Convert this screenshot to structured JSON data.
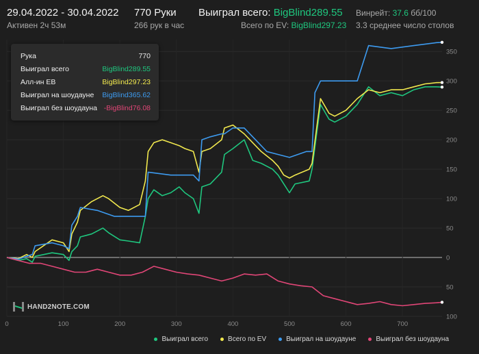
{
  "header": {
    "date_range": "29.04.2022 - 30.04.2022",
    "active": "Активен 2ч 53м",
    "hands": "770 Руки",
    "hands_per_hour": "266 рук в час",
    "won_label": "Выиграл всего:",
    "won_value": "BigBlind289.55",
    "ev_label": "Всего по EV:",
    "ev_value": "BigBlind297.23",
    "winrate_label": "Винрейт:",
    "winrate_value": "37.6",
    "winrate_unit": "бб/100",
    "tables": "3.3 среднее число столов"
  },
  "tooltip": {
    "rows": [
      {
        "label": "Рука",
        "value": "770",
        "color": "#e6e6e6"
      },
      {
        "label": "Выиграл всего",
        "value": "BigBlind289.55",
        "color": "#1fc77f"
      },
      {
        "label": "Алл-ин EB",
        "value": "BigBlind297.23",
        "color": "#f2e94e"
      },
      {
        "label": "Выиграл на шоудауне",
        "value": "BigBlind365.62",
        "color": "#3d9bf0"
      },
      {
        "label": "Выиграл без шоудауна",
        "value": "-BigBlind76.08",
        "color": "#e14677"
      }
    ]
  },
  "logo": {
    "text": "HAND2NOTE.COM"
  },
  "chart_data": {
    "type": "line",
    "xlim": [
      0,
      770
    ],
    "ylim": [
      -100,
      370
    ],
    "x_ticks": [
      0,
      100,
      200,
      300,
      400,
      500,
      600,
      700
    ],
    "y_ticks": [
      -100,
      -50,
      0,
      50,
      100,
      150,
      200,
      250,
      300,
      350
    ],
    "y_tick_labels": [
      "100",
      "50",
      "0",
      "50",
      "100",
      "150",
      "200",
      "250",
      "300",
      "350"
    ],
    "grid": true,
    "legend_position": "bottom-right",
    "series": [
      {
        "name": "Выиграл всего",
        "color": "#1fc77f",
        "points": [
          [
            0,
            0
          ],
          [
            20,
            -5
          ],
          [
            35,
            -2
          ],
          [
            45,
            -8
          ],
          [
            50,
            2
          ],
          [
            80,
            8
          ],
          [
            100,
            5
          ],
          [
            110,
            -5
          ],
          [
            115,
            10
          ],
          [
            125,
            20
          ],
          [
            130,
            35
          ],
          [
            150,
            40
          ],
          [
            170,
            50
          ],
          [
            180,
            42
          ],
          [
            200,
            30
          ],
          [
            215,
            28
          ],
          [
            235,
            25
          ],
          [
            245,
            70
          ],
          [
            250,
            100
          ],
          [
            260,
            115
          ],
          [
            275,
            105
          ],
          [
            290,
            110
          ],
          [
            305,
            120
          ],
          [
            315,
            110
          ],
          [
            330,
            100
          ],
          [
            340,
            75
          ],
          [
            345,
            120
          ],
          [
            360,
            125
          ],
          [
            380,
            145
          ],
          [
            385,
            175
          ],
          [
            400,
            185
          ],
          [
            420,
            200
          ],
          [
            435,
            165
          ],
          [
            450,
            160
          ],
          [
            470,
            150
          ],
          [
            480,
            140
          ],
          [
            490,
            125
          ],
          [
            500,
            110
          ],
          [
            510,
            125
          ],
          [
            535,
            130
          ],
          [
            540,
            150
          ],
          [
            555,
            260
          ],
          [
            570,
            235
          ],
          [
            580,
            230
          ],
          [
            600,
            240
          ],
          [
            620,
            260
          ],
          [
            640,
            290
          ],
          [
            660,
            275
          ],
          [
            680,
            280
          ],
          [
            700,
            275
          ],
          [
            720,
            285
          ],
          [
            740,
            290
          ],
          [
            760,
            290
          ],
          [
            770,
            289.55
          ]
        ]
      },
      {
        "name": "Всего по EV",
        "color": "#f2e94e",
        "points": [
          [
            0,
            0
          ],
          [
            20,
            -2
          ],
          [
            35,
            5
          ],
          [
            45,
            0
          ],
          [
            50,
            10
          ],
          [
            80,
            30
          ],
          [
            100,
            25
          ],
          [
            110,
            10
          ],
          [
            115,
            40
          ],
          [
            125,
            60
          ],
          [
            130,
            80
          ],
          [
            150,
            95
          ],
          [
            170,
            105
          ],
          [
            180,
            100
          ],
          [
            200,
            85
          ],
          [
            215,
            80
          ],
          [
            235,
            90
          ],
          [
            245,
            130
          ],
          [
            250,
            180
          ],
          [
            260,
            195
          ],
          [
            275,
            200
          ],
          [
            290,
            195
          ],
          [
            305,
            190
          ],
          [
            315,
            185
          ],
          [
            330,
            180
          ],
          [
            340,
            145
          ],
          [
            345,
            180
          ],
          [
            360,
            185
          ],
          [
            380,
            200
          ],
          [
            385,
            220
          ],
          [
            400,
            225
          ],
          [
            420,
            210
          ],
          [
            435,
            195
          ],
          [
            450,
            180
          ],
          [
            470,
            165
          ],
          [
            480,
            155
          ],
          [
            490,
            140
          ],
          [
            500,
            135
          ],
          [
            510,
            140
          ],
          [
            535,
            150
          ],
          [
            540,
            160
          ],
          [
            555,
            270
          ],
          [
            570,
            245
          ],
          [
            580,
            240
          ],
          [
            600,
            250
          ],
          [
            620,
            270
          ],
          [
            640,
            285
          ],
          [
            660,
            280
          ],
          [
            680,
            285
          ],
          [
            700,
            285
          ],
          [
            720,
            290
          ],
          [
            740,
            295
          ],
          [
            760,
            297
          ],
          [
            770,
            297.23
          ]
        ]
      },
      {
        "name": "Выиграл на шоудауне",
        "color": "#3d9bf0",
        "points": [
          [
            0,
            0
          ],
          [
            20,
            -3
          ],
          [
            35,
            2
          ],
          [
            45,
            5
          ],
          [
            50,
            20
          ],
          [
            80,
            25
          ],
          [
            100,
            20
          ],
          [
            110,
            15
          ],
          [
            115,
            55
          ],
          [
            125,
            70
          ],
          [
            130,
            85
          ],
          [
            160,
            80
          ],
          [
            190,
            70
          ],
          [
            215,
            70
          ],
          [
            245,
            70
          ],
          [
            250,
            145
          ],
          [
            290,
            140
          ],
          [
            320,
            140
          ],
          [
            330,
            140
          ],
          [
            340,
            130
          ],
          [
            345,
            200
          ],
          [
            360,
            205
          ],
          [
            380,
            210
          ],
          [
            385,
            210
          ],
          [
            400,
            220
          ],
          [
            420,
            220
          ],
          [
            440,
            200
          ],
          [
            460,
            180
          ],
          [
            480,
            175
          ],
          [
            500,
            170
          ],
          [
            530,
            180
          ],
          [
            540,
            180
          ],
          [
            545,
            280
          ],
          [
            555,
            300
          ],
          [
            580,
            300
          ],
          [
            600,
            300
          ],
          [
            620,
            300
          ],
          [
            640,
            360
          ],
          [
            680,
            355
          ],
          [
            720,
            360
          ],
          [
            760,
            365
          ],
          [
            770,
            365.62
          ]
        ]
      },
      {
        "name": "Выиграл без шоудауна",
        "color": "#e14677",
        "points": [
          [
            0,
            0
          ],
          [
            20,
            -5
          ],
          [
            40,
            -10
          ],
          [
            60,
            -10
          ],
          [
            80,
            -15
          ],
          [
            100,
            -20
          ],
          [
            120,
            -25
          ],
          [
            140,
            -25
          ],
          [
            160,
            -20
          ],
          [
            180,
            -25
          ],
          [
            200,
            -30
          ],
          [
            220,
            -30
          ],
          [
            240,
            -25
          ],
          [
            260,
            -15
          ],
          [
            280,
            -20
          ],
          [
            300,
            -25
          ],
          [
            320,
            -28
          ],
          [
            340,
            -30
          ],
          [
            360,
            -35
          ],
          [
            380,
            -40
          ],
          [
            400,
            -35
          ],
          [
            420,
            -28
          ],
          [
            440,
            -30
          ],
          [
            460,
            -28
          ],
          [
            480,
            -40
          ],
          [
            500,
            -45
          ],
          [
            520,
            -48
          ],
          [
            540,
            -50
          ],
          [
            560,
            -65
          ],
          [
            580,
            -70
          ],
          [
            600,
            -75
          ],
          [
            620,
            -80
          ],
          [
            640,
            -78
          ],
          [
            660,
            -75
          ],
          [
            680,
            -80
          ],
          [
            700,
            -82
          ],
          [
            720,
            -80
          ],
          [
            740,
            -78
          ],
          [
            760,
            -77
          ],
          [
            770,
            -76.08
          ]
        ]
      }
    ]
  }
}
